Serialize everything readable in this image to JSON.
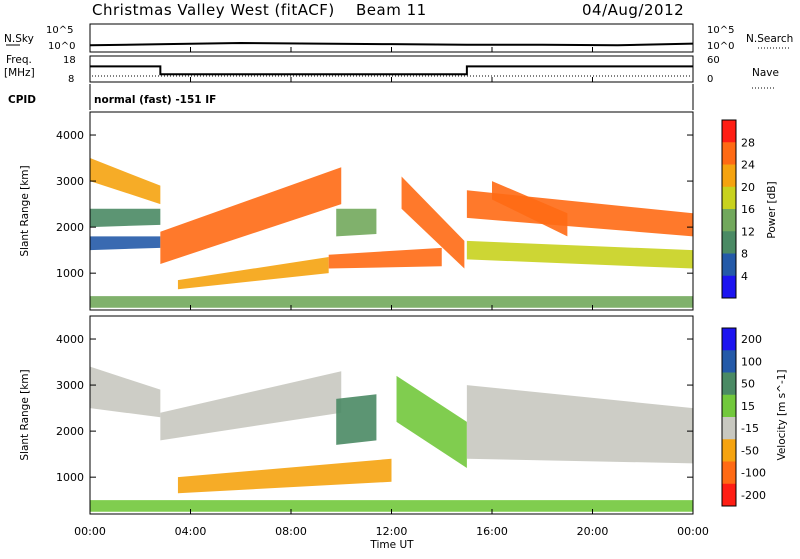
{
  "header": {
    "site": "Christmas Valley West (fitACF)",
    "beam": "Beam 11",
    "date": "04/Aug/2012"
  },
  "status": {
    "nsky_label": "N.Sky",
    "nsky_ticks": [
      "10^5",
      "10^0"
    ],
    "nsearch_label": "N.Search",
    "nsearch_ticks": [
      "10^5",
      "10^0"
    ],
    "freq_label_1": "Freq.",
    "freq_label_2": "[MHz]",
    "freq_ticks": [
      "18",
      "8"
    ],
    "nave_label": "Nave",
    "nave_ticks": [
      "60",
      "0"
    ],
    "cpid_label": "CPID",
    "cpid_text": "normal (fast) -151 IF"
  },
  "x_axis": {
    "label": "Time UT",
    "ticks": [
      "00:00",
      "04:00",
      "08:00",
      "12:00",
      "16:00",
      "20:00",
      "00:00"
    ]
  },
  "colors": {
    "power": [
      "#1c14f0",
      "#245aa8",
      "#4a8a64",
      "#72a85c",
      "#c8d21e",
      "#f5a30f",
      "#ff6a14",
      "#ff1e14"
    ],
    "velocity": [
      "#1c14f0",
      "#245aa8",
      "#4a8a64",
      "#72c83c",
      "#c8c8c0",
      "#f5a30f",
      "#ff6a14",
      "#ff1e14"
    ]
  },
  "chart_data": [
    {
      "type": "line",
      "panel": "sky-noise",
      "ylabel": "N.Sky",
      "ylim": [
        0,
        5
      ],
      "xlim_hours": [
        0,
        24
      ],
      "series": [
        {
          "x": [
            0,
            3,
            6,
            9,
            12,
            15,
            18,
            21,
            24
          ],
          "y": [
            1.2,
            1.4,
            1.6,
            1.5,
            1.4,
            1.3,
            1.3,
            1.2,
            1.5
          ]
        }
      ]
    },
    {
      "type": "line",
      "panel": "frequency",
      "ylabel": "Freq. [MHz]",
      "ylim": [
        8,
        18
      ],
      "xlim_hours": [
        0,
        24
      ],
      "series": [
        {
          "x": [
            0,
            2.8,
            2.8,
            15,
            15,
            24
          ],
          "y": [
            14,
            14,
            11,
            11,
            14,
            14
          ]
        }
      ]
    },
    {
      "type": "heatmap",
      "panel": "power",
      "ylabel": "Slant Range [km]",
      "yticks": [
        1000,
        2000,
        3000,
        4000
      ],
      "ylim": [
        200,
        4500
      ],
      "xlim_hours": [
        0,
        24
      ],
      "colorbar_label": "Power [dB]",
      "colorbar_ticks": [
        "28",
        "24",
        "20",
        "16",
        "12",
        "8",
        "4"
      ],
      "bands": [
        {
          "t": [
            0,
            2.8
          ],
          "r0": [
            3000,
            2500
          ],
          "r1": [
            3500,
            2900
          ],
          "level": 5
        },
        {
          "t": [
            0,
            2.8
          ],
          "r0": [
            2000,
            2050
          ],
          "r1": [
            2400,
            2400
          ],
          "level": 2
        },
        {
          "t": [
            0,
            2.8
          ],
          "r0": [
            1500,
            1550
          ],
          "r1": [
            1800,
            1800
          ],
          "level": 1
        },
        {
          "t": [
            2.8,
            10
          ],
          "r0": [
            1200,
            2500
          ],
          "r1": [
            1900,
            3300
          ],
          "level": 6
        },
        {
          "t": [
            3.5,
            9.5
          ],
          "r0": [
            650,
            1000
          ],
          "r1": [
            850,
            1350
          ],
          "level": 5
        },
        {
          "t": [
            9.5,
            14
          ],
          "r0": [
            1100,
            1150
          ],
          "r1": [
            1400,
            1550
          ],
          "level": 6
        },
        {
          "t": [
            9.8,
            11.4
          ],
          "r0": [
            1800,
            1850
          ],
          "r1": [
            2400,
            2400
          ],
          "level": 3
        },
        {
          "t": [
            12.4,
            14.9
          ],
          "r0": [
            2400,
            1100
          ],
          "r1": [
            3100,
            1700
          ],
          "level": 6
        },
        {
          "t": [
            15,
            24
          ],
          "r0": [
            2200,
            1800
          ],
          "r1": [
            2800,
            2300
          ],
          "level": 6
        },
        {
          "t": [
            15,
            24
          ],
          "r0": [
            1300,
            1100
          ],
          "r1": [
            1700,
            1500
          ],
          "level": 4
        },
        {
          "t": [
            16,
            19
          ],
          "r0": [
            2600,
            1800
          ],
          "r1": [
            3000,
            2300
          ],
          "level": 6
        },
        {
          "t": [
            0,
            24
          ],
          "r0": [
            250,
            250
          ],
          "r1": [
            500,
            500
          ],
          "level": 3
        }
      ]
    },
    {
      "type": "heatmap",
      "panel": "velocity",
      "ylabel": "Slant Range [km]",
      "yticks": [
        1000,
        2000,
        3000,
        4000
      ],
      "ylim": [
        200,
        4500
      ],
      "xlim_hours": [
        0,
        24
      ],
      "colorbar_label": "Velocity [m s^-1]",
      "colorbar_ticks": [
        "200",
        "100",
        "50",
        "15",
        "-15",
        "-50",
        "-100",
        "-200"
      ],
      "bands": [
        {
          "t": [
            0,
            2.8
          ],
          "r0": [
            2500,
            2300
          ],
          "r1": [
            3400,
            2900
          ],
          "level": 4
        },
        {
          "t": [
            2.8,
            10
          ],
          "r0": [
            1800,
            2400
          ],
          "r1": [
            2400,
            3300
          ],
          "level": 4
        },
        {
          "t": [
            3.5,
            12
          ],
          "r0": [
            650,
            900
          ],
          "r1": [
            1000,
            1400
          ],
          "level": 5
        },
        {
          "t": [
            9.8,
            11.4
          ],
          "r0": [
            1700,
            1800
          ],
          "r1": [
            2700,
            2800
          ],
          "level": 2
        },
        {
          "t": [
            12.2,
            15
          ],
          "r0": [
            2200,
            1200
          ],
          "r1": [
            3200,
            2200
          ],
          "level": 3
        },
        {
          "t": [
            15,
            24
          ],
          "r0": [
            1400,
            1300
          ],
          "r1": [
            3000,
            2500
          ],
          "level": 4
        },
        {
          "t": [
            0,
            24
          ],
          "r0": [
            250,
            250
          ],
          "r1": [
            500,
            500
          ],
          "level": 3
        }
      ]
    }
  ]
}
